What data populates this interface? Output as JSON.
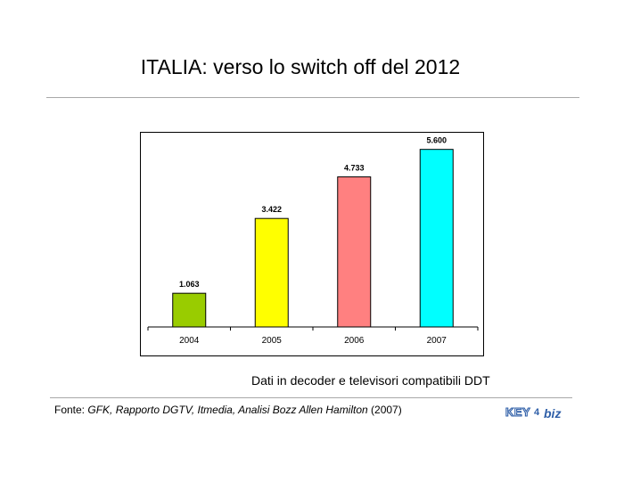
{
  "page": {
    "title": "ITALIA: verso lo switch off del 2012",
    "caption": "Dati in decoder e televisori compatibili DDT",
    "source": {
      "prefix": "Fonte: ",
      "italic": "GFK, Rapporto DGTV, Itmedia, Analisi Bozz Allen Hamilton",
      "suffix": " (2007)"
    },
    "logo": {
      "text_left": "KEY",
      "text_mid": "4",
      "text_right": "biz"
    }
  },
  "chart_data": {
    "type": "bar",
    "categories": [
      "2004",
      "2005",
      "2006",
      "2007"
    ],
    "values": [
      1063,
      3422,
      4733,
      5600
    ],
    "value_labels": [
      "1.063",
      "3.422",
      "4.733",
      "5.600"
    ],
    "colors": [
      "#99cc00",
      "#ffff00",
      "#ff8080",
      "#00ffff"
    ],
    "ylim": [
      0,
      5900
    ],
    "grid": false,
    "legend": "none"
  }
}
